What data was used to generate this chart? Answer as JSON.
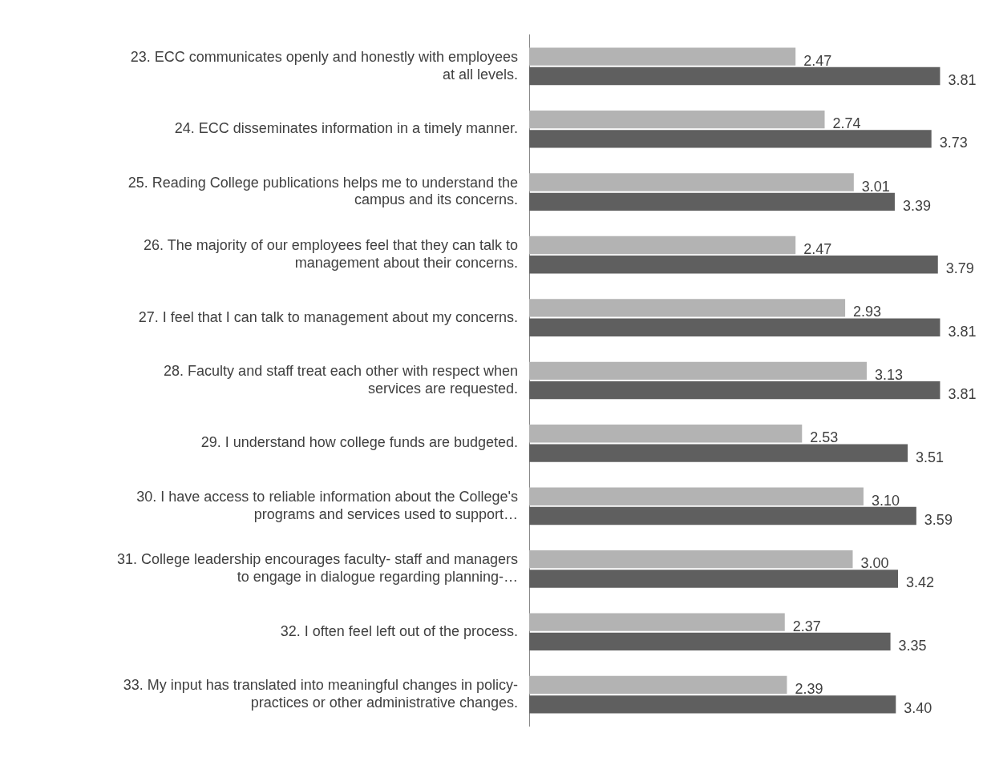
{
  "chart_data": {
    "type": "bar",
    "orientation": "horizontal",
    "categories": [
      "23. ECC communicates openly and honestly with employees at all levels.",
      "24. ECC disseminates information in a timely manner.",
      "25. Reading College publications helps me to understand the campus and its concerns.",
      "26. The majority of our employees feel that they can talk to management about their concerns.",
      "27. I feel that I can talk to management about my concerns.",
      "28. Faculty and staff treat each other with respect when services are requested.",
      "29. I understand how college funds are budgeted.",
      "30. I have access to reliable information about the College's programs and services used to support…",
      "31. College leadership encourages faculty- staff and managers to engage in dialogue regarding planning-…",
      "32. I often feel left out of the process.",
      "33. My input has translated into meaningful changes in policy- practices or other administrative changes."
    ],
    "series": [
      {
        "color": "#b3b3b3",
        "values": [
          2.47,
          2.74,
          3.01,
          2.47,
          2.93,
          3.13,
          2.53,
          3.1,
          3.0,
          2.37,
          2.39
        ],
        "value_labels": [
          "2.47",
          "2.74",
          "3.01",
          "2.47",
          "2.93",
          "3.13",
          "2.53",
          "3.10",
          "3.00",
          "2.37",
          "2.39"
        ]
      },
      {
        "color": "#5f5f5f",
        "values": [
          3.81,
          3.73,
          3.39,
          3.79,
          3.81,
          3.81,
          3.51,
          3.59,
          3.42,
          3.35,
          3.4
        ],
        "value_labels": [
          "3.81",
          "3.73",
          "3.39",
          "3.79",
          "3.81",
          "3.81",
          "3.51",
          "3.59",
          "3.42",
          "3.35",
          "3.40"
        ]
      }
    ],
    "tick_labels": "y",
    "grid": false,
    "legend": false
  }
}
